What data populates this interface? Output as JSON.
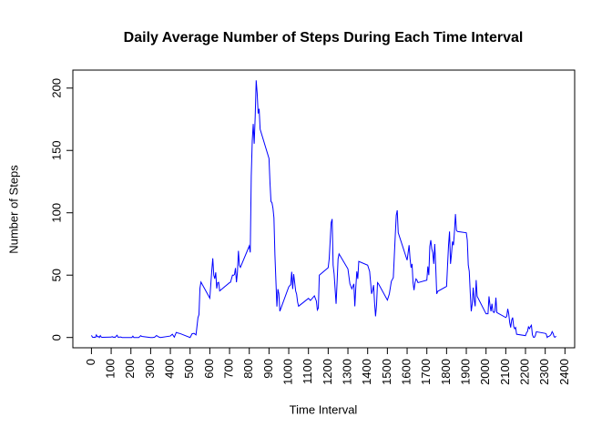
{
  "chart_data": {
    "type": "line",
    "title": "Daily Average Number of Steps During Each Time Interval",
    "x_label": "Time Interval",
    "y_label": "Number of Steps",
    "x": [
      0,
      5,
      10,
      15,
      20,
      25,
      30,
      35,
      40,
      45,
      50,
      55,
      100,
      105,
      110,
      115,
      120,
      125,
      130,
      135,
      140,
      145,
      150,
      155,
      200,
      205,
      210,
      215,
      220,
      230,
      240,
      250,
      255,
      300,
      310,
      320,
      330,
      340,
      350,
      400,
      410,
      420,
      430,
      440,
      450,
      500,
      510,
      520,
      530,
      540,
      545,
      550,
      555,
      600,
      610,
      615,
      620,
      625,
      630,
      635,
      640,
      645,
      650,
      700,
      705,
      715,
      720,
      725,
      730,
      735,
      740,
      745,
      750,
      755,
      800,
      805,
      810,
      815,
      820,
      825,
      830,
      835,
      840,
      845,
      850,
      855,
      900,
      905,
      910,
      915,
      920,
      925,
      930,
      935,
      940,
      945,
      950,
      955,
      1000,
      1010,
      1015,
      1020,
      1025,
      1030,
      1035,
      1040,
      1045,
      1050,
      1100,
      1110,
      1130,
      1140,
      1145,
      1150,
      1155,
      1200,
      1205,
      1215,
      1220,
      1225,
      1230,
      1240,
      1245,
      1250,
      1255,
      1300,
      1310,
      1320,
      1330,
      1335,
      1340,
      1345,
      1350,
      1355,
      1400,
      1410,
      1420,
      1425,
      1430,
      1435,
      1440,
      1445,
      1450,
      1455,
      1500,
      1510,
      1520,
      1530,
      1535,
      1540,
      1545,
      1550,
      1555,
      1600,
      1610,
      1615,
      1620,
      1625,
      1630,
      1635,
      1640,
      1645,
      1650,
      1655,
      1700,
      1705,
      1710,
      1715,
      1720,
      1725,
      1730,
      1735,
      1740,
      1745,
      1750,
      1755,
      1800,
      1805,
      1810,
      1815,
      1820,
      1825,
      1830,
      1835,
      1840,
      1845,
      1850,
      1855,
      1900,
      1905,
      1910,
      1915,
      1920,
      1925,
      1930,
      1935,
      1940,
      1945,
      1950,
      1955,
      2000,
      2005,
      2010,
      2015,
      2020,
      2025,
      2030,
      2035,
      2040,
      2045,
      2050,
      2055,
      2100,
      2105,
      2110,
      2115,
      2120,
      2125,
      2130,
      2135,
      2140,
      2145,
      2150,
      2155,
      2200,
      2205,
      2210,
      2215,
      2220,
      2225,
      2230,
      2235,
      2240,
      2245,
      2250,
      2255,
      2300,
      2305,
      2310,
      2315,
      2320,
      2325,
      2330,
      2335,
      2340,
      2345,
      2350,
      2355
    ],
    "series": [
      {
        "name": "steps",
        "color": "#0000ff",
        "values": [
          1.7,
          0.3,
          0.1,
          0.2,
          0.1,
          2.1,
          0.5,
          0.9,
          0,
          1.5,
          0.3,
          0.1,
          0.3,
          0.7,
          0.2,
          0.3,
          0,
          1.1,
          1.8,
          0.2,
          0.2,
          0.4,
          0.3,
          0,
          0,
          0,
          1.1,
          0,
          0,
          0,
          0,
          1.5,
          0.9,
          0,
          0,
          0.2,
          1.6,
          0.5,
          0,
          1.2,
          2.6,
          0.3,
          4.1,
          3.5,
          3.1,
          0,
          3,
          3.3,
          2.1,
          16,
          18.3,
          39.5,
          44.5,
          31.5,
          53.8,
          63.5,
          50,
          47.1,
          52.2,
          39.3,
          44,
          44.2,
          37.4,
          44,
          44.3,
          50,
          49.9,
          50.5,
          55.7,
          44.3,
          52.3,
          69.5,
          57.8,
          56.2,
          73.4,
          68.2,
          129.4,
          157.5,
          171.2,
          155.4,
          177.3,
          206.2,
          195.9,
          179.6,
          183.4,
          167,
          143.5,
          124,
          109.1,
          108.1,
          103.7,
          95.9,
          66.2,
          45.2,
          24.8,
          38.8,
          35,
          21.1,
          40.6,
          42.4,
          52.7,
          38.9,
          50.8,
          44.3,
          37.4,
          34.7,
          28.3,
          25.1,
          31.4,
          29.7,
          33.4,
          29.3,
          22.1,
          23.6,
          50,
          56,
          63,
          92,
          95,
          58,
          51,
          27,
          44,
          63,
          67,
          55,
          43,
          39,
          43,
          25,
          40,
          53,
          47,
          61,
          58,
          53,
          35,
          38,
          42,
          28,
          17,
          26,
          44,
          43,
          30,
          35,
          45,
          48,
          65,
          82,
          98,
          102,
          84,
          62,
          74,
          63,
          56,
          59,
          44,
          38,
          44,
          47,
          46,
          44,
          46,
          57,
          50,
          73,
          78,
          71,
          68,
          59,
          75,
          57,
          35,
          37,
          41,
          58,
          74,
          85,
          59,
          67,
          77,
          74,
          85,
          99,
          86,
          85,
          84,
          78,
          58,
          53,
          36,
          21,
          27,
          40,
          30,
          25,
          46,
          33,
          19,
          19,
          19,
          33,
          26,
          21,
          27,
          21,
          20,
          21,
          32,
          20,
          16,
          17,
          23,
          19,
          12,
          8,
          14,
          16,
          9,
          7,
          8,
          2.6,
          1.5,
          3.7,
          4.8,
          8.5,
          7.1,
          8.7,
          9.8,
          2.2,
          0.3,
          0.1,
          1.6,
          4.6,
          3.3,
          2.8,
          0,
          0.8,
          1,
          1.6,
          2.6,
          4.7,
          3.3,
          0.6,
          0.2,
          1.1
        ]
      }
    ],
    "xlim": [
      -94.2,
      2449.2
    ],
    "ylim": [
      -8.25,
      214.42
    ],
    "xticks": [
      0,
      100,
      200,
      300,
      400,
      500,
      600,
      700,
      800,
      900,
      1000,
      1100,
      1200,
      1300,
      1400,
      1500,
      1600,
      1700,
      1800,
      1900,
      2000,
      2100,
      2200,
      2300,
      2400
    ],
    "yticks": [
      0,
      50,
      100,
      150,
      200
    ]
  }
}
